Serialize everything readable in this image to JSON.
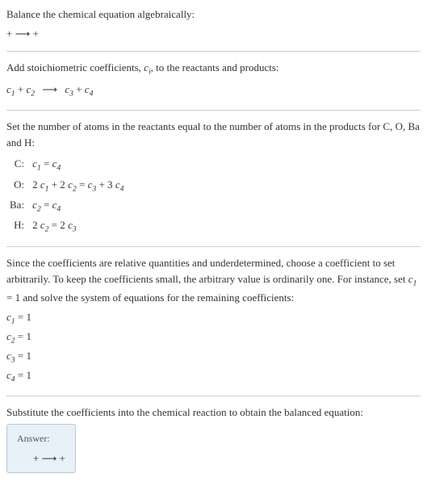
{
  "colors": {
    "background": "#ffffff",
    "text": "#333333",
    "divider": "#cccccc",
    "answer_bg": "#e8f0f8",
    "answer_border": "#b8c8d8",
    "answer_label": "#555555"
  },
  "typography": {
    "body_font": "Georgia, 'Times New Roman', serif",
    "body_size": 13,
    "sub_scale": 0.75
  },
  "intro": {
    "line1": "Balance the chemical equation algebraically:",
    "reaction_display": " +  ⟶  + "
  },
  "stoich": {
    "prompt_before": "Add stoichiometric coefficients, ",
    "ci_symbol": "c",
    "ci_sub": "i",
    "prompt_after": ", to the reactants and products:",
    "eq_parts": {
      "c1": "c",
      "s1": "1",
      "c2": "c",
      "s2": "2",
      "arrow": "⟶",
      "c3": "c",
      "s3": "3",
      "c4": "c",
      "s4": "4",
      "plus": " + "
    }
  },
  "atoms": {
    "prompt": "Set the number of atoms in the reactants equal to the number of atoms in the products for C, O, Ba and H:",
    "rows": [
      {
        "label": "C:",
        "eq_text": "c₁ = c₄",
        "eq_html": "c1_eq_c4"
      },
      {
        "label": "O:",
        "eq_text": "2 c₁ + 2 c₂ = c₃ + 3 c₄",
        "eq_html": "o_eq"
      },
      {
        "label": "Ba:",
        "eq_text": "c₂ = c₄",
        "eq_html": "ba_eq"
      },
      {
        "label": "H:",
        "eq_text": "2 c₂ = 2 c₃",
        "eq_html": "h_eq"
      }
    ]
  },
  "solve": {
    "paragraph": "Since the coefficients are relative quantities and underdetermined, choose a coefficient to set arbitrarily. To keep the coefficients small, the arbitrary value is ordinarily one. For instance, set c₁ = 1 and solve the system of equations for the remaining coefficients:",
    "lines": [
      "c₁ = 1",
      "c₂ = 1",
      "c₃ = 1",
      "c₄ = 1"
    ]
  },
  "substitute": {
    "paragraph": "Substitute the coefficients into the chemical reaction to obtain the balanced equation:"
  },
  "answer": {
    "label": "Answer:",
    "equation": " +  ⟶  + "
  }
}
